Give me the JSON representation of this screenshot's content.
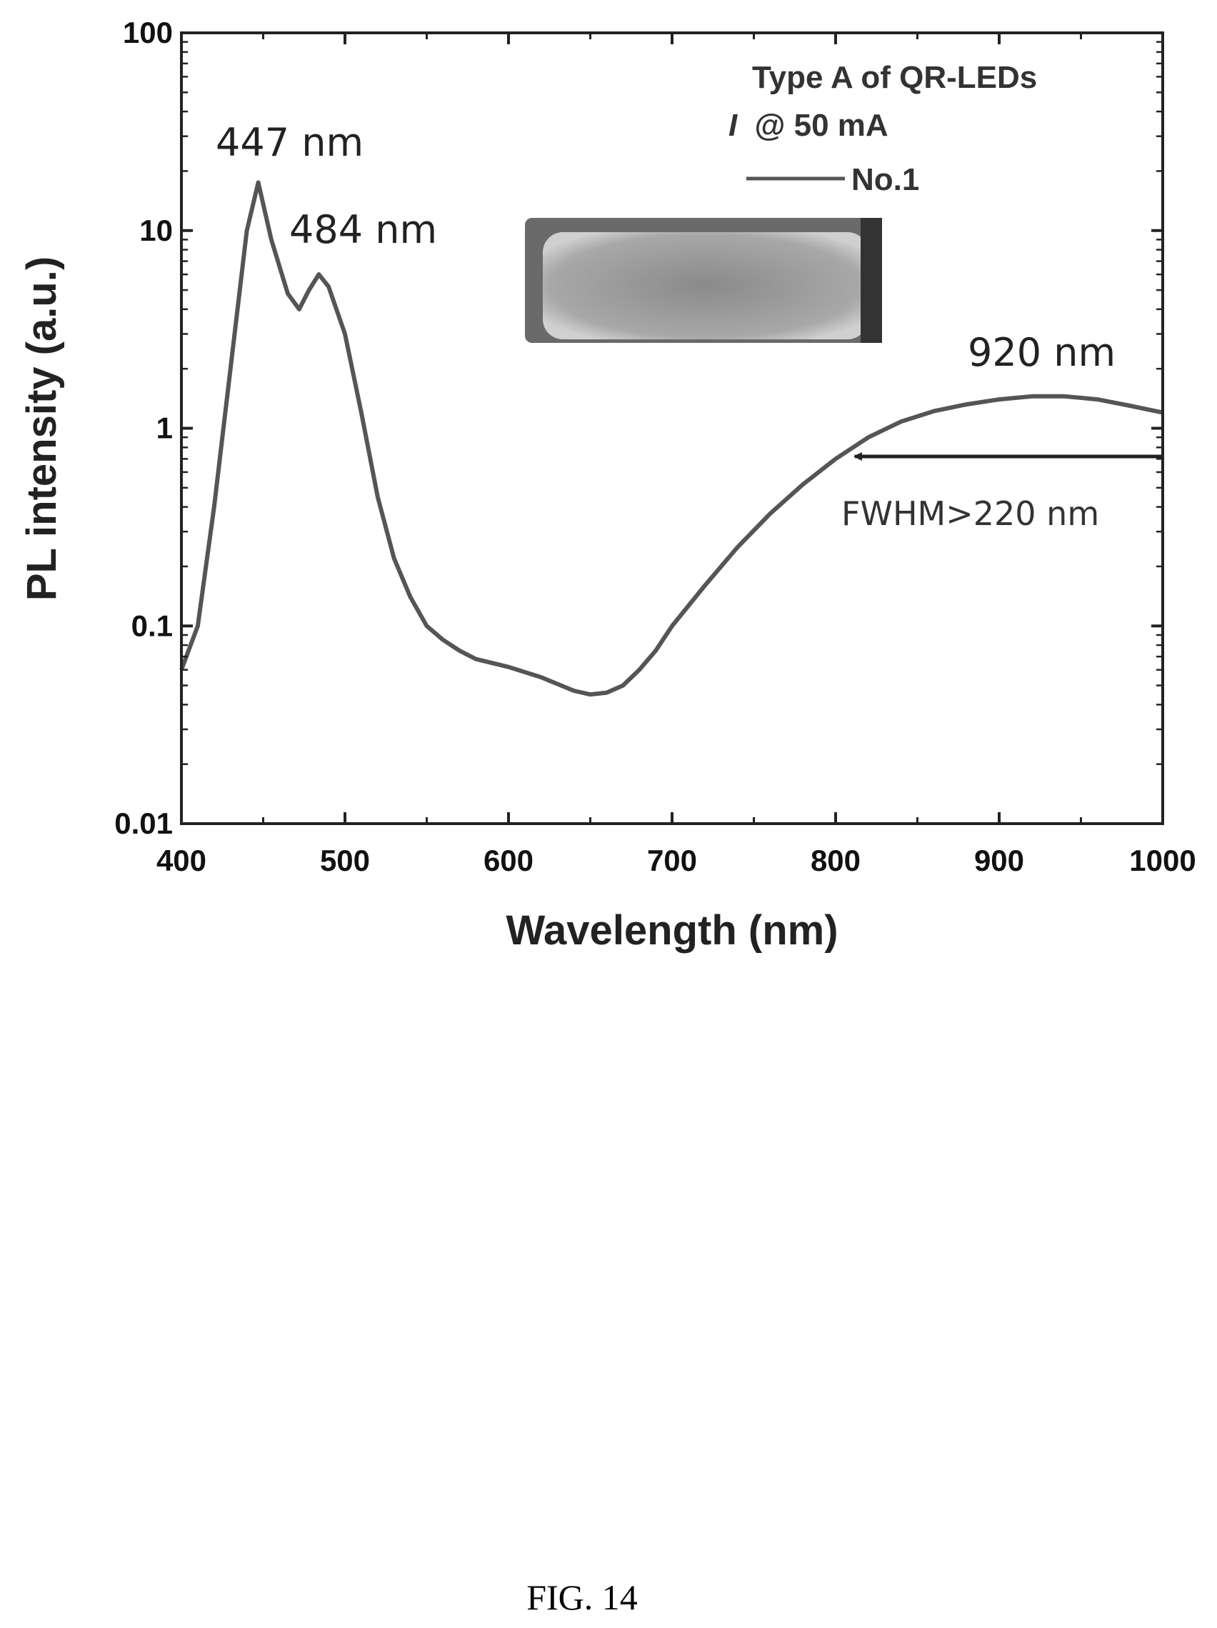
{
  "chart_data": {
    "type": "line",
    "xlabel": "Wavelength (nm)",
    "ylabel": "PL intensity (a.u.)",
    "xlim": [
      400,
      1000
    ],
    "ylim": [
      0.01,
      100
    ],
    "yscale": "log",
    "x_ticks": [
      "400",
      "500",
      "600",
      "700",
      "800",
      "900",
      "1000"
    ],
    "y_ticks": [
      "0.01",
      "0.1",
      "1",
      "10",
      "100"
    ],
    "legend": {
      "lines": [
        "Type A of QR-LEDs",
        "@ 50 mA"
      ],
      "current_symbol": "I",
      "placement": "top-right",
      "series_label": "No.1"
    },
    "series": [
      {
        "name": "No.1",
        "x": [
          400,
          410,
          420,
          430,
          440,
          447,
          455,
          465,
          472,
          478,
          484,
          490,
          500,
          510,
          520,
          530,
          540,
          550,
          560,
          570,
          580,
          600,
          620,
          640,
          650,
          660,
          670,
          680,
          690,
          700,
          720,
          740,
          760,
          780,
          800,
          820,
          840,
          860,
          880,
          900,
          920,
          940,
          960,
          980,
          1000
        ],
        "y": [
          0.06,
          0.1,
          0.4,
          2.0,
          10.0,
          17.5,
          9.0,
          4.8,
          4.0,
          5.0,
          6.0,
          5.2,
          3.0,
          1.2,
          0.45,
          0.22,
          0.14,
          0.1,
          0.085,
          0.075,
          0.068,
          0.062,
          0.055,
          0.047,
          0.045,
          0.046,
          0.05,
          0.06,
          0.075,
          0.1,
          0.16,
          0.25,
          0.37,
          0.52,
          0.7,
          0.9,
          1.08,
          1.22,
          1.32,
          1.4,
          1.45,
          1.45,
          1.4,
          1.3,
          1.2
        ]
      }
    ],
    "annotations": [
      "447 nm",
      "484 nm",
      "920 nm",
      "FWHM>220 nm"
    ],
    "arrow": {
      "from_x": 1000,
      "to_x": 810,
      "y": 0.72
    },
    "line_color": "#555555"
  },
  "caption": "FIG. 14"
}
